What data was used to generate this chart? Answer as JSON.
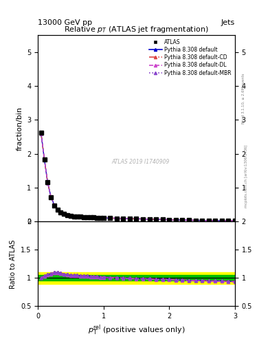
{
  "title": "Relative $p_T$ (ATLAS jet fragmentation)",
  "header_left": "13000 GeV pp",
  "header_right": "Jets",
  "ylabel_main": "fraction/bin",
  "ylabel_ratio": "Ratio to ATLAS",
  "watermark": "ATLAS 2019 I1740909",
  "right_label": "mcplots.cern.ch [arXiv:1306.3436]",
  "right_label2": "Rivet 3.1.10, ≥ 2.6M events",
  "ylim_main": [
    0,
    5.5
  ],
  "ylim_ratio": [
    0.5,
    2.0
  ],
  "xlim": [
    0,
    3.0
  ],
  "data_x": [
    0.05,
    0.1,
    0.15,
    0.2,
    0.25,
    0.3,
    0.35,
    0.4,
    0.45,
    0.5,
    0.55,
    0.6,
    0.65,
    0.7,
    0.75,
    0.8,
    0.85,
    0.9,
    0.95,
    1.0,
    1.1,
    1.2,
    1.3,
    1.4,
    1.5,
    1.6,
    1.7,
    1.8,
    1.9,
    2.0,
    2.1,
    2.2,
    2.3,
    2.4,
    2.5,
    2.6,
    2.7,
    2.8,
    2.9,
    3.0
  ],
  "data_y_atlas": [
    2.62,
    1.84,
    1.16,
    0.72,
    0.48,
    0.35,
    0.27,
    0.22,
    0.19,
    0.17,
    0.155,
    0.145,
    0.14,
    0.135,
    0.13,
    0.125,
    0.12,
    0.115,
    0.11,
    0.105,
    0.1,
    0.095,
    0.09,
    0.085,
    0.08,
    0.075,
    0.07,
    0.065,
    0.06,
    0.055,
    0.05,
    0.045,
    0.04,
    0.035,
    0.032,
    0.029,
    0.026,
    0.023,
    0.02,
    0.018
  ],
  "data_y_pythia": [
    2.6,
    1.83,
    1.15,
    0.73,
    0.49,
    0.355,
    0.275,
    0.225,
    0.19,
    0.17,
    0.155,
    0.145,
    0.14,
    0.135,
    0.13,
    0.125,
    0.12,
    0.115,
    0.11,
    0.105,
    0.1,
    0.095,
    0.09,
    0.085,
    0.08,
    0.075,
    0.07,
    0.065,
    0.06,
    0.055,
    0.05,
    0.045,
    0.04,
    0.035,
    0.032,
    0.029,
    0.026,
    0.023,
    0.02,
    0.018
  ],
  "ratio_default": [
    1.0,
    1.04,
    1.06,
    1.08,
    1.1,
    1.1,
    1.09,
    1.07,
    1.06,
    1.05,
    1.05,
    1.05,
    1.04,
    1.04,
    1.04,
    1.03,
    1.03,
    1.03,
    1.02,
    1.02,
    1.01,
    1.01,
    1.0,
    1.0,
    0.99,
    0.99,
    0.99,
    0.98,
    0.98,
    0.98,
    0.97,
    0.97,
    0.96,
    0.96,
    0.96,
    0.95,
    0.95,
    0.95,
    0.94,
    0.94
  ],
  "ratio_CD": [
    1.0,
    1.04,
    1.06,
    1.08,
    1.1,
    1.1,
    1.09,
    1.07,
    1.06,
    1.05,
    1.05,
    1.05,
    1.04,
    1.04,
    1.04,
    1.03,
    1.03,
    1.03,
    1.02,
    1.02,
    1.01,
    1.01,
    1.0,
    1.0,
    0.99,
    0.99,
    0.99,
    0.98,
    0.98,
    0.98,
    0.97,
    0.97,
    0.96,
    0.96,
    0.96,
    0.95,
    0.95,
    0.95,
    0.94,
    0.94
  ],
  "ratio_DL": [
    1.0,
    1.03,
    1.05,
    1.07,
    1.09,
    1.09,
    1.08,
    1.06,
    1.05,
    1.04,
    1.04,
    1.04,
    1.03,
    1.03,
    1.03,
    1.02,
    1.02,
    1.02,
    1.01,
    1.01,
    1.0,
    1.0,
    0.99,
    0.99,
    0.98,
    0.98,
    0.98,
    0.97,
    0.97,
    0.97,
    0.96,
    0.96,
    0.95,
    0.95,
    0.95,
    0.94,
    0.94,
    0.94,
    0.93,
    0.93
  ],
  "ratio_MBR": [
    1.0,
    1.04,
    1.06,
    1.08,
    1.1,
    1.1,
    1.09,
    1.07,
    1.06,
    1.05,
    1.05,
    1.05,
    1.04,
    1.04,
    1.04,
    1.03,
    1.03,
    1.03,
    1.02,
    1.02,
    1.01,
    1.01,
    1.0,
    1.0,
    0.99,
    0.99,
    0.99,
    0.98,
    0.98,
    0.98,
    0.97,
    0.97,
    0.96,
    0.96,
    0.96,
    0.95,
    0.95,
    0.95,
    0.94,
    0.94
  ],
  "color_default": "#0000cc",
  "color_CD": "#dd4444",
  "color_DL": "#cc44cc",
  "color_MBR": "#8844cc",
  "band_yellow": "#ffff00",
  "band_green": "#00bb00",
  "yticks_main": [
    0,
    1,
    2,
    3,
    4,
    5
  ],
  "yticks_ratio": [
    0.5,
    1.0,
    1.5,
    2.0
  ],
  "xticks": [
    0,
    1,
    2,
    3
  ]
}
